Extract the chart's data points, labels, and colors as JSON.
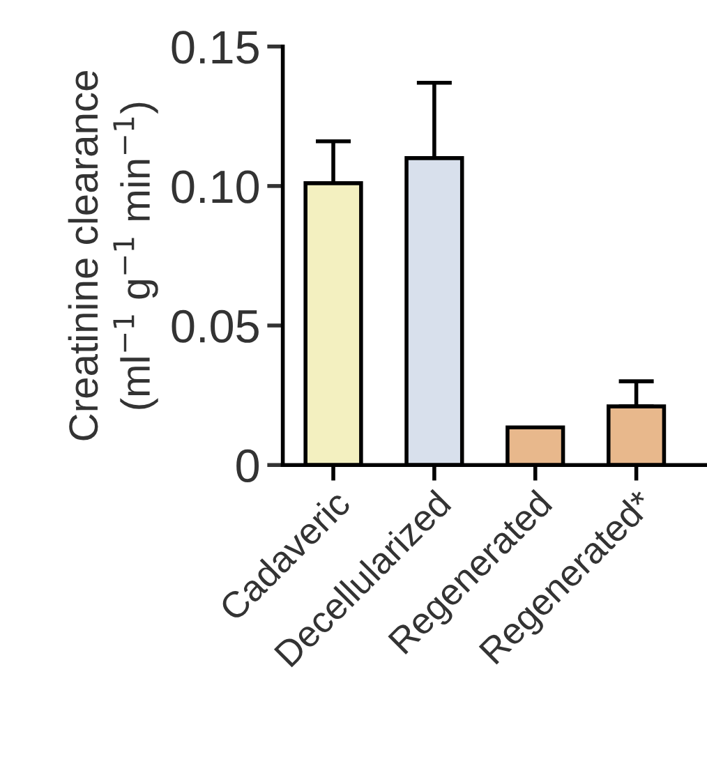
{
  "chart_data": {
    "type": "bar",
    "ylabel": "Creatinine clearance\n(ml$^{−1}$ g$^{−1}$ min$^{−1}$)",
    "categories": [
      "Cadaveric",
      "Decellularized",
      "Regenerated",
      "Regenerated*"
    ],
    "values": [
      0.101,
      0.11,
      0.0135,
      0.021
    ],
    "errors": [
      [
        0.101,
        0.116
      ],
      [
        0.11,
        0.137
      ],
      null,
      [
        0.021,
        0.03
      ]
    ],
    "colors": [
      "#f3f0c0",
      "#d8e0ec",
      "#e8b88c",
      "#e8b88c"
    ],
    "ylim": [
      0,
      0.15
    ],
    "yticks": [
      0,
      0.05,
      {
        "value": 0.1,
        "label": "0.10"
      },
      0.15
    ],
    "grid": false
  }
}
